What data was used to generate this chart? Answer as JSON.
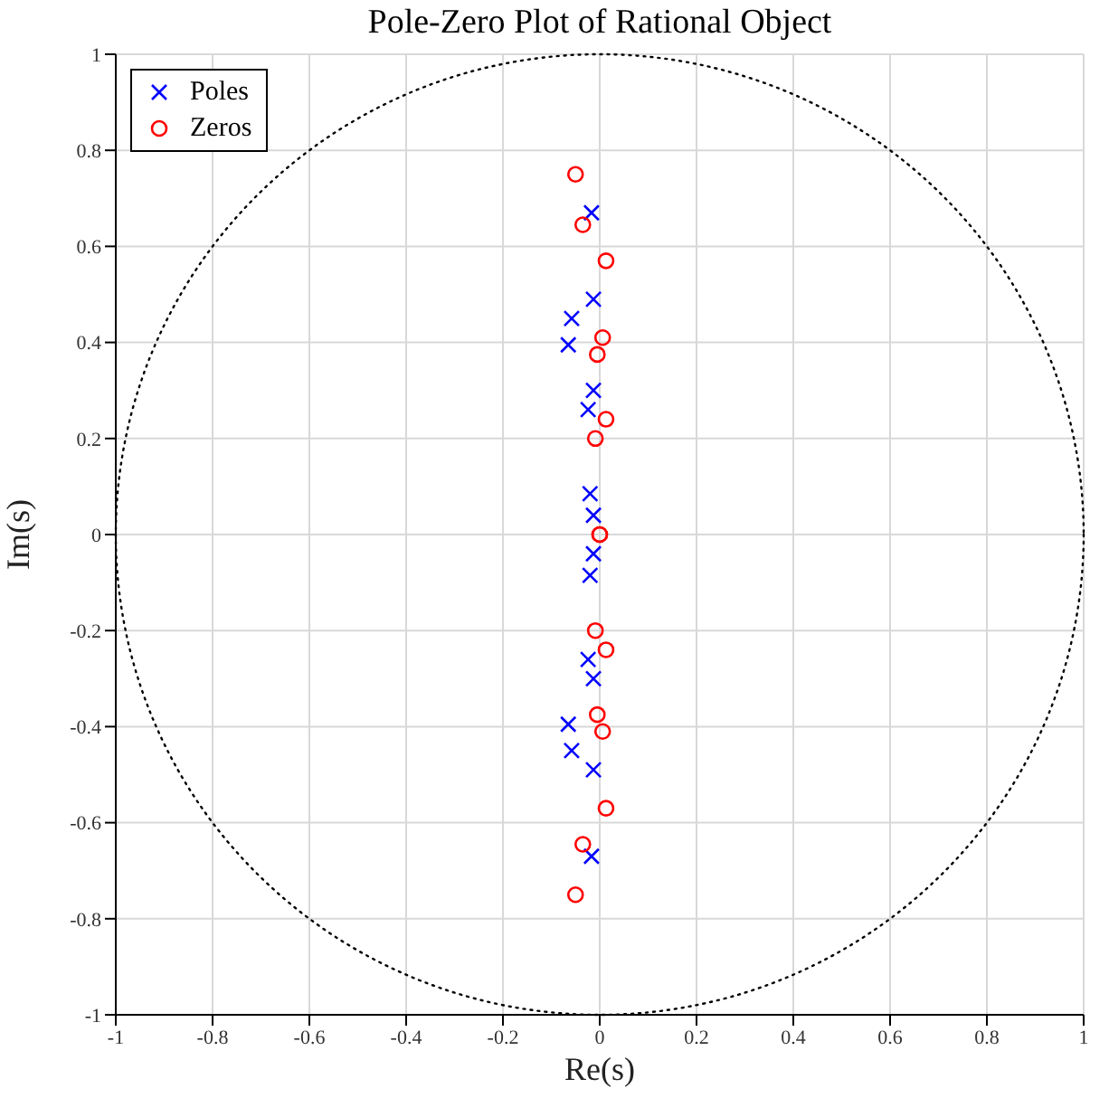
{
  "chart_data": {
    "type": "scatter",
    "title": "Pole-Zero Plot of Rational Object",
    "xlabel": "Re(s)",
    "ylabel": "Im(s)",
    "xlim": [
      -1,
      1
    ],
    "ylim": [
      -1,
      1
    ],
    "xticks": [
      -1,
      -0.8,
      -0.6,
      -0.4,
      -0.2,
      0,
      0.2,
      0.4,
      0.6,
      0.8,
      1
    ],
    "yticks": [
      -1,
      -0.8,
      -0.6,
      -0.4,
      -0.2,
      0,
      0.2,
      0.4,
      0.6,
      0.8,
      1
    ],
    "grid": true,
    "legend": "top left",
    "series": [
      {
        "name": "Poles",
        "color": "#0000ff",
        "marker": "cross",
        "x": [
          -0.017,
          -0.013,
          -0.058,
          -0.065,
          -0.013,
          -0.024,
          -0.02,
          -0.013,
          -0.017,
          -0.013,
          -0.058,
          -0.065,
          -0.013,
          -0.024,
          -0.02,
          -0.013
        ],
        "values": [
          0.67,
          0.49,
          0.45,
          0.395,
          0.3,
          0.26,
          0.085,
          0.04,
          -0.67,
          -0.49,
          -0.45,
          -0.395,
          -0.3,
          -0.26,
          -0.085,
          -0.04
        ]
      },
      {
        "name": "Zeros",
        "color": "#ff0000",
        "marker": "circle",
        "x": [
          -0.05,
          -0.035,
          0.013,
          0.006,
          -0.005,
          0.013,
          -0.009,
          0,
          -0.05,
          -0.035,
          0.013,
          0.006,
          -0.005,
          0.013,
          -0.009,
          0
        ],
        "values": [
          0.75,
          0.645,
          0.57,
          0.41,
          0.375,
          0.24,
          0.2,
          0,
          -0.75,
          -0.645,
          -0.57,
          -0.41,
          -0.375,
          -0.24,
          -0.2,
          0
        ]
      }
    ]
  }
}
